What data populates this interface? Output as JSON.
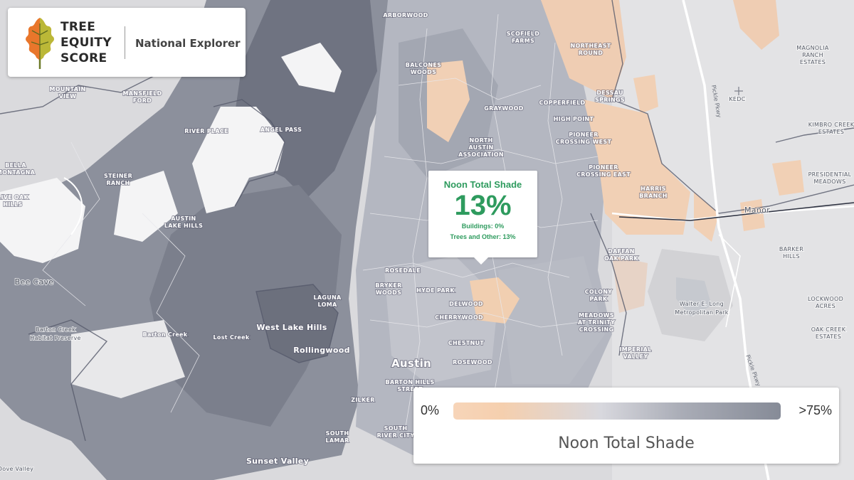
{
  "brand": {
    "title_line1": "TREE",
    "title_line2": "EQUITY",
    "title_line3": "SCORE",
    "subtitle": "National Explorer",
    "leaf_colors": [
      "#e9762b",
      "#b3c43a",
      "#8a9a2c"
    ]
  },
  "popup": {
    "title": "Noon Total Shade",
    "value": "13%",
    "buildings": "Buildings: 0%",
    "trees_other": "Trees and Other: 13%"
  },
  "legend": {
    "min_label": "0%",
    "max_label": ">75%",
    "title": "Noon Total Shade",
    "colors": [
      "#f7d5b9",
      "#d8d8de",
      "#868b97"
    ]
  },
  "map_labels": {
    "arborwood": "ARBORWOOD",
    "balcones_woods_1": "BALCONES",
    "balcones_woods_2": "WOODS",
    "scofield_1": "SCOFIELD",
    "scofield_2": "FARMS",
    "mountain_view_1": "MOUNTAIN",
    "mountain_view_2": "VIEW",
    "mansfield_1": "MANSFIELD",
    "mansfield_2": "FORD",
    "river_place": "RIVER PLACE",
    "angel_pass": "ANGEL PASS",
    "graywood": "GRAYWOOD",
    "north_acres_1": "NORTH",
    "north_acres_2": "AUSTIN",
    "north_acres_3": "ASSOCIATION",
    "copperfield": "COPPERFIELD",
    "northeast_1": "NORTHEAST",
    "northeast_2": "ROUND",
    "high_point": "HIGH POINT",
    "pioneer_west_1": "PIONEER",
    "pioneer_west_2": "CROSSING WEST",
    "pioneer_east_1": "PIONEER",
    "pioneer_east_2": "CROSSING EAST",
    "harris_1": "HARRIS",
    "harris_2": "BRANCH",
    "bella_1": "BELLA",
    "bella_2": "MONTAGNA",
    "steiner_1": "STEINER",
    "steiner_2": "RANCH",
    "live_oak_1": "LIVE OAK",
    "live_oak_2": "HILLS",
    "austin_lake_1": "AUSTIN",
    "austin_lake_2": "LAKE HILLS",
    "bee_cave": "Bee Cave",
    "laguna_1": "LAGUNA",
    "laguna_2": "LOMA",
    "west_lake_hills": "West Lake Hills",
    "rollingwood": "Rollingwood",
    "lost_creek": "Lost Creek",
    "barton_creek": "Barton Creek",
    "barton_preserve_1": "Barton Creek",
    "barton_preserve_2": "Habitat Preserve",
    "rosedale": "ROSEDALE",
    "brykerwoods_1": "BRYKER",
    "brykerwoods_2": "WOODS",
    "hyde_park": "HYDE PARK",
    "delwood": "DELWOOD",
    "cherrywood": "CHERRYWOOD",
    "chestnut": "CHESTNUT",
    "rosewood": "ROSEWOOD",
    "austin": "Austin",
    "zilker": "ZILKER",
    "barton_hills_1": "BARTON HILLS",
    "barton_hills_2": "STREET",
    "south_lamar_1": "SOUTH",
    "south_lamar_2": "LAMAR",
    "south_river_1": "SOUTH",
    "south_river_2": "RIVER CITY",
    "sunset_valley": "Sunset Valley",
    "bouldin": "BOULDIN",
    "pflugerville": "Pflugerville",
    "magnolia_1": "MAGNOLIA",
    "magnolia_2": "RANCH",
    "magnolia_3": "ESTATES",
    "kedc": "KEDC",
    "kimbro_1": "KIMBRO CREEK",
    "kimbro_2": "ESTATES",
    "presidential_1": "PRESIDENTIAL",
    "presidential_2": "MEADOWS",
    "manor": "Manor",
    "barker_1": "BARKER",
    "barker_2": "HILLS",
    "walter_1": "Walter E. Long",
    "walter_2": "Metropolitan Park",
    "lockwood_1": "LOCKWOOD",
    "lockwood_2": "ACRES",
    "oak_creek_1": "OAK CREEK",
    "oak_creek_2": "ESTATES",
    "dessau_1": "DESSAU",
    "dessau_2": "SPRINGS",
    "daffan_1": "DAFFAN",
    "daffan_2": "OAK PARK",
    "colony_1": "COLONY",
    "colony_2": "PARK",
    "meadows_1": "MEADOWS",
    "meadows_2": "AT TRINITY",
    "meadows_3": "CROSSING",
    "imperial_1": "IMPERIAL",
    "imperial_2": "VALLEY",
    "pickle_1": "Pickle Pkwy",
    "pickle_2": "Pickle Pkwy",
    "pecan_1": "Pecan",
    "pecan_2": "Creek",
    "dove_springs": "Dove Valley"
  }
}
